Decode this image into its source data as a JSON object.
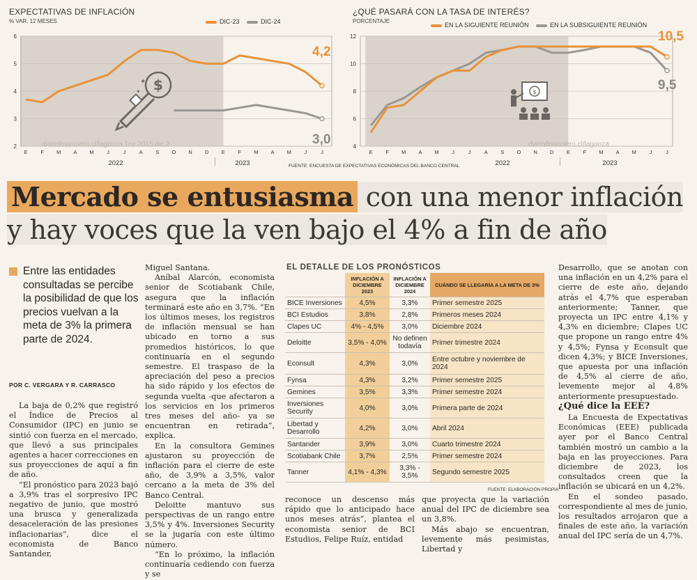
{
  "colors": {
    "dic23": "#e8923a",
    "dic24": "#9a9691",
    "accent": "#e9a85d",
    "panel": "#d9d3cb"
  },
  "chart1": {
    "title": "EXPECTATIVAS DE INFLACIÓN",
    "subtitle": "% VAR. 12 MESES",
    "legend": [
      {
        "label": "DIC-23",
        "color": "#e8923a"
      },
      {
        "label": "DIC-24",
        "color": "#9a9691"
      }
    ],
    "end_label_dic23": "4,2",
    "end_label_dic24": "3,0",
    "watermark": "diariofinanciero.cl/lagonza 1ce 2015.dic.2"
  },
  "chart2": {
    "title": "¿QUÉ PASARÁ CON LA TASA DE INTERÉS?",
    "subtitle": "PORCENTAJE",
    "legend": [
      {
        "label": "EN LA SIGUIENTE REUNIÓN",
        "color": "#e8923a"
      },
      {
        "label": "EN LA SUBSIGUIENTE REUNIÓN",
        "color": "#9a9691"
      }
    ],
    "end_label_next": "10,5",
    "end_label_following": "9,5",
    "watermark": "diariofinanciero.cl/lagonza",
    "source": "FUENTE: ENCUESTA DE EXPECTATIVAS ECONÓMICAS DEL BANCO CENTRAL"
  },
  "chart_data": [
    {
      "type": "line",
      "title": "EXPECTATIVAS DE INFLACIÓN",
      "ylabel": "% VAR. 12 MESES",
      "ylim": [
        2,
        6
      ],
      "yticks": [
        "2",
        "3",
        "4",
        "5",
        "6"
      ],
      "x_tick_labels": [
        "E",
        "F",
        "M",
        "A",
        "M",
        "J",
        "J",
        "A",
        "S",
        "O",
        "N",
        "D",
        "E",
        "F",
        "M",
        "A",
        "M",
        "J",
        "J"
      ],
      "year_labels": [
        "2022",
        "2023"
      ],
      "series": [
        {
          "name": "DIC-23",
          "values": [
            3.7,
            3.6,
            4.0,
            4.2,
            4.4,
            4.6,
            5.1,
            5.5,
            5.5,
            5.4,
            5.1,
            5.0,
            5.0,
            5.3,
            5.2,
            5.1,
            5.0,
            4.7,
            4.2
          ]
        },
        {
          "name": "DIC-24",
          "values": [
            null,
            null,
            null,
            null,
            null,
            null,
            null,
            null,
            null,
            3.3,
            3.3,
            3.3,
            3.3,
            3.4,
            3.5,
            3.4,
            3.3,
            3.2,
            3.0
          ]
        }
      ]
    },
    {
      "type": "line",
      "title": "¿QUÉ PASARÁ CON LA TASA DE INTERÉS?",
      "ylabel": "PORCENTAJE",
      "ylim": [
        4,
        12
      ],
      "yticks": [
        "4",
        "6",
        "8",
        "10",
        "12"
      ],
      "x_tick_labels": [
        "E",
        "F",
        "M",
        "A",
        "M",
        "J",
        "J",
        "A",
        "S",
        "O",
        "N",
        "D",
        "E",
        "F",
        "M",
        "A",
        "M",
        "J",
        "J"
      ],
      "year_labels": [
        "2022",
        "2023"
      ],
      "series": [
        {
          "name": "EN LA SIGUIENTE REUNIÓN",
          "values": [
            5.0,
            6.8,
            7.0,
            8.0,
            9.0,
            9.5,
            9.5,
            10.5,
            11.0,
            11.25,
            11.25,
            11.25,
            11.25,
            11.25,
            11.25,
            11.25,
            11.25,
            11.25,
            10.5
          ]
        },
        {
          "name": "EN LA SUBSIGUIENTE REUNIÓN",
          "values": [
            5.5,
            7.0,
            7.5,
            8.3,
            9.0,
            9.5,
            10.0,
            10.8,
            11.0,
            11.25,
            11.25,
            10.8,
            10.8,
            11.0,
            11.25,
            11.25,
            11.25,
            10.8,
            9.5
          ]
        }
      ]
    }
  ],
  "headline": {
    "highlight": "Mercado se entusiasma",
    "rest1": " con una menor inflación",
    "line2": "y hay voces que la ven bajo el 4% a fin de año"
  },
  "lead": "Entre las entidades consultadas se percibe la posibilidad de que los precios vuelvan a la meta de 3% la primera parte de 2024.",
  "byline": "POR C. VERGARA Y R. CARRASCO",
  "col1": [
    "La baja de 0,2% que registró el Índice de Precios al Consumidor (IPC) en junio se sintió con fuerza en el mercado, que llevó a sus principales agentes a hacer correcciones en sus proyecciones de aquí a fin de año.",
    "“El pronóstico para 2023 bajó a 3,9% tras el sorpresivo IPC negativo de junio, que mostró una brusca y generalizada desaceleración de las presiones inflacionarias”, dice el economista de Banco Santander,"
  ],
  "col2": [
    "Miguel Santana.",
    "Aníbal Alarcón, economista senior de Scotiabank Chile, asegura que la inflación terminará este año en 3,7%. “En los últimos meses, los registros de inflación mensual se han ubicado en torno a sus promedios históricos, lo que continuaría en el segundo semestre. El traspaso de la apreciación del peso a precios ha sido rápido y los efectos de segunda vuelta -que afectaron a los servicios en los primeros tres meses del año- ya se encuentran en retirada”, explica.",
    "En la consultora Gemines ajustaron su proyección de inflación para el cierre de este año, de 3,9% a 3,5%, valor cercano a la meta de 3% del Banco Central.",
    "Deloitte mantuvo sus perspectivas de un rango entre 3,5% y 4%. Inversiones Security se la jugaría con este último número.",
    "“En lo próximo, la inflación continuaría cediendo con fuerza y se"
  ],
  "col3a": "reconoce un descenso más rápido que lo anticipado hace unos meses atrás”, plantea el economista senior de BCI Estudios, Felipe Ruíz, entidad",
  "col3b": [
    "que proyecta que la variación anual del IPC de diciembre sea un 3,8%.",
    "Más abajo se encuentran, levemente más pesimistas, Libertad y"
  ],
  "col4": [
    "Desarrollo, que se anotan con una inflación en un 4,2% para el cierre de este año, dejando atrás el 4,7% que esperaban anteriormente; Tanner, que proyecta un IPC entre 4,1% y 4,3% en diciembre; Clapes UC que propone un rango entre 4% y 4,5%; Fynsa y Econsult que dicen 4,3%; y BICE Inversiones, que apuesta por una inflación de 4,5% al cierre de año, levemente mejor al 4,8% anteriormente presupuestado."
  ],
  "subhead": "¿Qué dice la EEE?",
  "col4b": [
    "La Encuesta de Expectativas Económicas (EEE) publicada ayer por el Banco Central también mostró un cambio a la baja en las proyecciones. Para diciembre de 2023, los consultados creen que la inflación se ubicará en un 4,2%.",
    "En el sondeo pasado, correspondiente al mes de junio, los resultados arrojaron que a finales de este año, la variación anual del IPC sería de un 4,7%."
  ],
  "table": {
    "title": "EL DETALLE DE LOS PRONÓSTICOS",
    "headers": [
      "",
      "INFLACIÓN A DICIEMBRE 2023",
      "INFLACIÓN A DICIEMBRE 2024",
      "CUÁNDO SE LLEGARÍA A LA META DE 3%"
    ],
    "rows": [
      [
        "BICE Inversiones",
        "4,5%",
        "3,3%",
        "Primer semestre 2025"
      ],
      [
        "BCI Estudios",
        "3,8%",
        "2,8%",
        "Primeros meses 2024"
      ],
      [
        "Clapes UC",
        "4% - 4,5%",
        "3,0%",
        "Diciembre 2024"
      ],
      [
        "Deloitte",
        "3,5% - 4,0%",
        "No definen todavía",
        "Primer trimestre 2024"
      ],
      [
        "Econsult",
        "4,3%",
        "3,0%",
        "Entre octubre y noviembre de 2024"
      ],
      [
        "Fynsa",
        "4,3%",
        "3,2%",
        "Primer semestre 2025"
      ],
      [
        "Gemines",
        "3,5%",
        "3,3%",
        "Primer semestre 2024"
      ],
      [
        "Inversiones Security",
        "4,0%",
        "3,0%",
        "Primera parte de 2024"
      ],
      [
        "Libertad y Desarrollo",
        "4,2%",
        "3,0%",
        "Abril 2024"
      ],
      [
        "Santander",
        "3,9%",
        "3,0%",
        "Cuarto trimestre 2024"
      ],
      [
        "Scotiabank Chile",
        "3,7%",
        "2,5%",
        "Primer semestre 2024"
      ],
      [
        "Tanner",
        "4,1% - 4,3%",
        "3,3% - 3,5%",
        "Segundo semestre 2025"
      ]
    ],
    "source": "FUENTE: ELABORACIÓN PROPIA"
  }
}
